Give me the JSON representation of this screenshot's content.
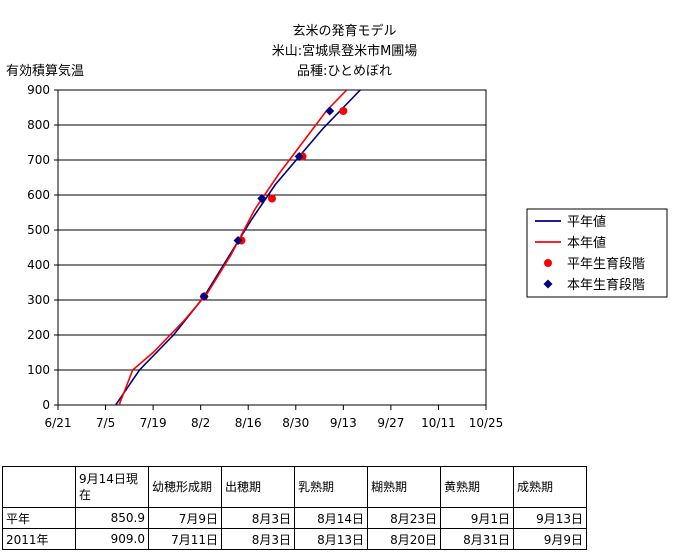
{
  "chart_data": {
    "type": "line",
    "title": "玄米の発育モデル",
    "subtitle1": "米山:宮城県登米市M圃場",
    "subtitle2": "品種:ひとめぼれ",
    "ylabel": "有効積算気温",
    "xlabel": "",
    "ylim": [
      0,
      900
    ],
    "y_ticks": [
      0,
      100,
      200,
      300,
      400,
      500,
      600,
      700,
      800,
      900
    ],
    "x_tick_labels": [
      "6/21",
      "7/5",
      "7/19",
      "8/2",
      "8/16",
      "8/30",
      "9/13",
      "9/27",
      "10/11",
      "10/25"
    ],
    "x_tick_dates": [
      "2011-06-21",
      "2011-07-05",
      "2011-07-19",
      "2011-08-02",
      "2011-08-16",
      "2011-08-30",
      "2011-09-13",
      "2011-09-27",
      "2011-10-11",
      "2011-10-25"
    ],
    "grid": "horizontal",
    "legend_position": "right",
    "series": [
      {
        "name": "平年値",
        "kind": "line",
        "color": "#000080",
        "points": [
          [
            "2011-07-08",
            0
          ],
          [
            "2011-07-15",
            100
          ],
          [
            "2011-07-25",
            200
          ],
          [
            "2011-08-03",
            310
          ],
          [
            "2011-08-10",
            420
          ],
          [
            "2011-08-17",
            530
          ],
          [
            "2011-08-24",
            630
          ],
          [
            "2011-08-31",
            710
          ],
          [
            "2011-09-07",
            790
          ],
          [
            "2011-09-14",
            860
          ],
          [
            "2011-09-18",
            900
          ]
        ]
      },
      {
        "name": "本年値",
        "kind": "line",
        "color": "#ff0000",
        "points": [
          [
            "2011-07-09",
            0
          ],
          [
            "2011-07-13",
            100
          ],
          [
            "2011-07-19",
            150
          ],
          [
            "2011-07-28",
            240
          ],
          [
            "2011-08-04",
            320
          ],
          [
            "2011-08-11",
            430
          ],
          [
            "2011-08-18",
            560
          ],
          [
            "2011-08-25",
            660
          ],
          [
            "2011-09-01",
            750
          ],
          [
            "2011-09-08",
            840
          ],
          [
            "2011-09-14",
            900
          ]
        ]
      },
      {
        "name": "平年生育段階",
        "kind": "marker",
        "marker": "circle",
        "color": "#ff0000",
        "points": [
          [
            "2011-08-03",
            310
          ],
          [
            "2011-08-14",
            470
          ],
          [
            "2011-08-23",
            590
          ],
          [
            "2011-09-01",
            710
          ],
          [
            "2011-09-13",
            840
          ]
        ]
      },
      {
        "name": "本年生育段階",
        "kind": "marker",
        "marker": "diamond",
        "color": "#000080",
        "points": [
          [
            "2011-08-03",
            310
          ],
          [
            "2011-08-13",
            470
          ],
          [
            "2011-08-20",
            590
          ],
          [
            "2011-08-31",
            710
          ],
          [
            "2011-09-09",
            840
          ]
        ]
      }
    ]
  },
  "table": {
    "headers": [
      "",
      "9月14日現在",
      "幼穂形成期",
      "出穂期",
      "乳熟期",
      "糊熟期",
      "黄熟期",
      "成熟期"
    ],
    "rows": [
      [
        "平年",
        "850.9",
        "7月9日",
        "8月3日",
        "8月14日",
        "8月23日",
        "9月1日",
        "9月13日"
      ],
      [
        "2011年",
        "909.0",
        "7月11日",
        "8月3日",
        "8月13日",
        "8月20日",
        "8月31日",
        "9月9日"
      ]
    ]
  }
}
